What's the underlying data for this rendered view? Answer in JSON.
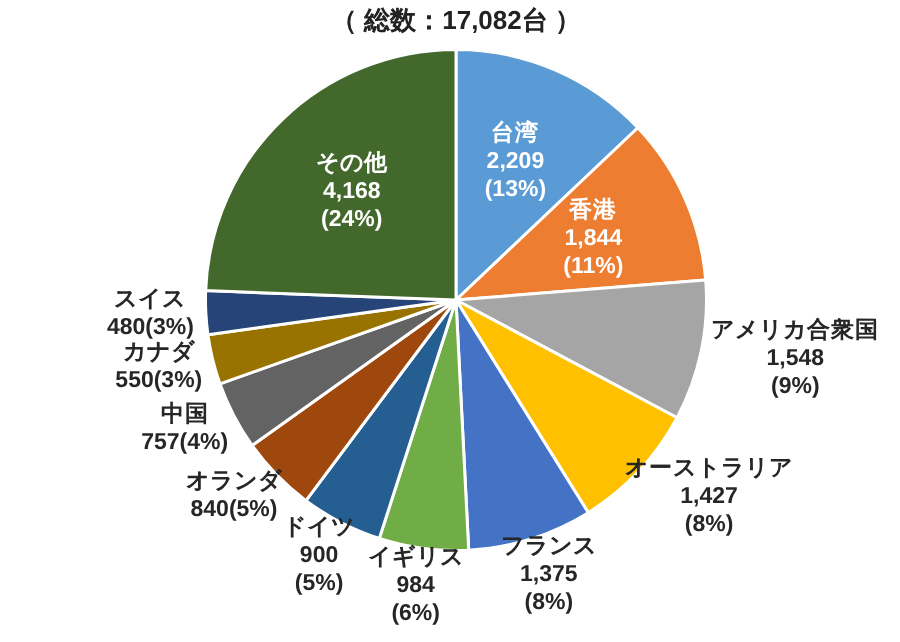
{
  "chart_data": {
    "type": "pie",
    "title": "（ 総数：17,082台 ）",
    "categories": [
      "台湾",
      "香港",
      "アメリカ合衆国",
      "オーストラリア",
      "フランス",
      "イギリス",
      "ドイツ",
      "オランダ",
      "中国",
      "カナダ",
      "スイス",
      "その他"
    ],
    "values": [
      2209,
      1844,
      1548,
      1427,
      1375,
      984,
      900,
      840,
      757,
      550,
      480,
      4168
    ],
    "colors": [
      "#5b9bd5",
      "#ed7d31",
      "#a5a5a5",
      "#ffc000",
      "#4472c4",
      "#70ad47",
      "#255e91",
      "#9e480e",
      "#636363",
      "#997300",
      "#264478",
      "#43682b"
    ],
    "value_labels": [
      "2,209 (13%)",
      "1,844 (11%)",
      "1,548 (9%)",
      "1,427 (8%)",
      "1,375 (8%)",
      "984 (6%)",
      "900 (5%)",
      "840(5%)",
      "757(4%)",
      "550(3%)",
      "480(3%)",
      "4,168 (24%)"
    ],
    "legend": false
  }
}
